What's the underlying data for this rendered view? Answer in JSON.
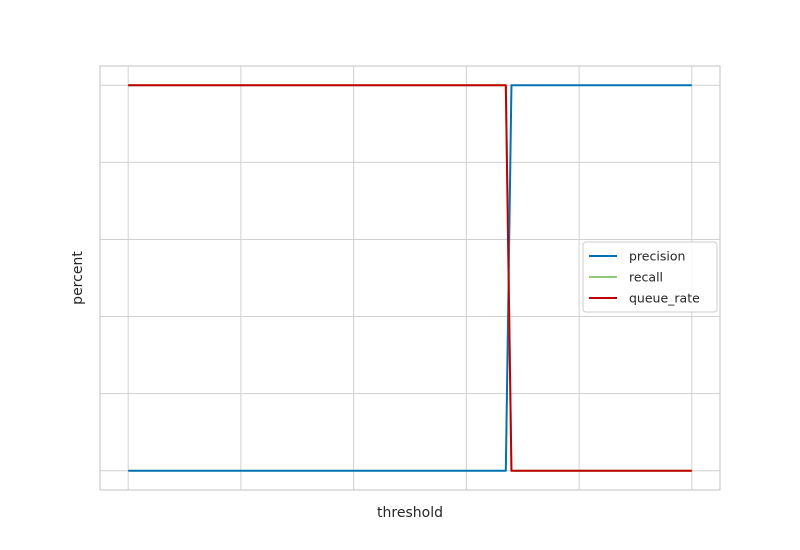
{
  "chart_data": {
    "type": "line",
    "title": "",
    "xlabel": "threshold",
    "ylabel": "percent",
    "xlim": [
      -0.025,
      0.525
    ],
    "ylim": [
      -0.05,
      1.05
    ],
    "grid": true,
    "legend_position": "center-right",
    "series": [
      {
        "name": "precision",
        "color": "#0072b2",
        "x": [
          0.0,
          0.335,
          0.34,
          0.5
        ],
        "y": [
          0.0,
          0.0,
          1.0,
          1.0
        ]
      },
      {
        "name": "recall",
        "color": "#8fc97b",
        "x": [
          0.0,
          0.335,
          0.34,
          0.5
        ],
        "y": [
          1.0,
          1.0,
          0.0,
          0.0
        ]
      },
      {
        "name": "queue_rate",
        "color": "#c00000",
        "x": [
          0.0,
          0.335,
          0.34,
          0.5
        ],
        "y": [
          1.0,
          1.0,
          0.0,
          0.0
        ]
      }
    ],
    "x_gridlines": [
      0.0,
      0.1,
      0.2,
      0.3,
      0.4,
      0.5
    ],
    "y_gridlines": [
      0.0,
      0.2,
      0.4,
      0.6,
      0.8,
      1.0
    ]
  }
}
